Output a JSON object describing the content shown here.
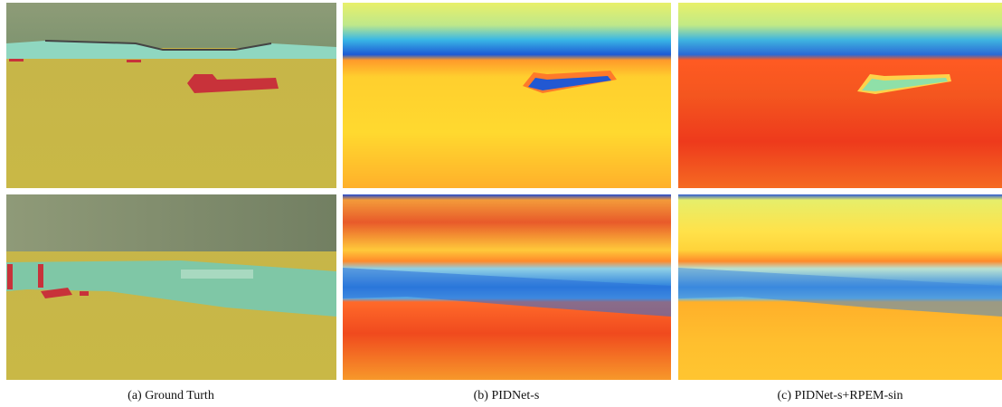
{
  "figure": {
    "captions": [
      "(a) Ground Turth",
      "(b) PIDNet-s",
      "(c) PIDNet-s+RPEM-sin"
    ]
  }
}
